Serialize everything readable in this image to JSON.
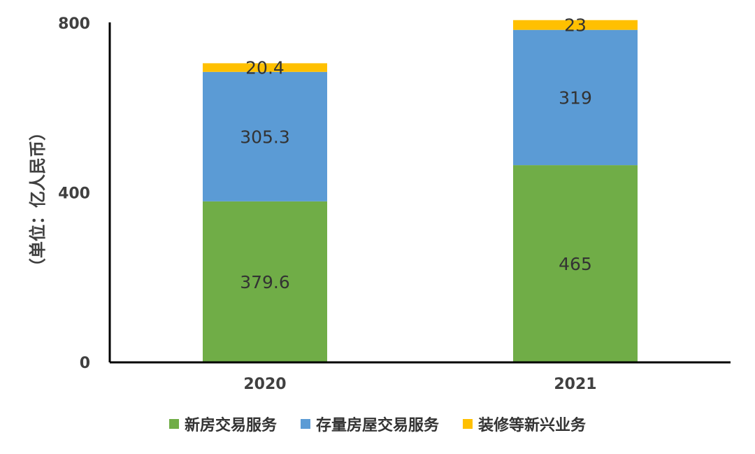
{
  "chart_data": {
    "type": "bar",
    "stacked": true,
    "categories": [
      "2020",
      "2021"
    ],
    "series": [
      {
        "name": "新房交易服务",
        "values": [
          379.6,
          465
        ],
        "labels": [
          "379.6",
          "465"
        ],
        "color": "#70AD47"
      },
      {
        "name": "存量房屋交易服务",
        "values": [
          305.3,
          319
        ],
        "labels": [
          "305.3",
          "319"
        ],
        "color": "#5B9BD5"
      },
      {
        "name": "装修等新兴业务",
        "values": [
          20.4,
          23
        ],
        "labels": [
          "20.4",
          "23"
        ],
        "color": "#FFC000"
      }
    ],
    "ylabel": "（单位：亿人民币）",
    "ylim": [
      0,
      800
    ],
    "yticks": [
      "0",
      "400",
      "800"
    ],
    "grid": false,
    "legend_position": "bottom"
  }
}
